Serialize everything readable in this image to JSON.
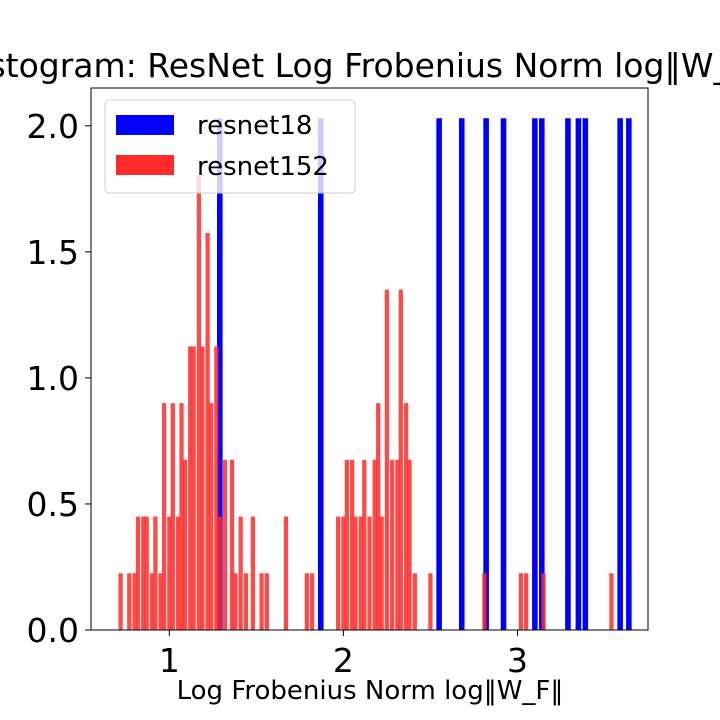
{
  "chart_data": {
    "type": "bar",
    "title": "Histogram: ResNet Log Frobenius Norm log‖W_F‖",
    "xlabel": "Log Frobenius Norm log‖W_F‖",
    "ylabel": "",
    "xlim": [
      0.55,
      3.75
    ],
    "ylim": [
      0,
      2.15
    ],
    "xticks": [
      1,
      2,
      3
    ],
    "yticks": [
      0.0,
      0.5,
      1.0,
      1.5,
      2.0
    ],
    "ytick_labels": [
      "0.0",
      "0.5",
      "1.0",
      "1.5",
      "2.0"
    ],
    "grid": false,
    "legend_position": "top-left",
    "series": [
      {
        "name": "resnet18",
        "color": "#0000ff",
        "bin_width": 0.032,
        "bins": [
          {
            "x": 1.29,
            "y": 2.03
          },
          {
            "x": 1.87,
            "y": 2.03
          },
          {
            "x": 2.55,
            "y": 2.03
          },
          {
            "x": 2.68,
            "y": 2.03
          },
          {
            "x": 2.82,
            "y": 2.03
          },
          {
            "x": 2.92,
            "y": 2.03
          },
          {
            "x": 3.1,
            "y": 2.03
          },
          {
            "x": 3.14,
            "y": 2.03
          },
          {
            "x": 3.29,
            "y": 2.03
          },
          {
            "x": 3.35,
            "y": 2.03
          },
          {
            "x": 3.39,
            "y": 2.03
          },
          {
            "x": 3.59,
            "y": 2.03
          },
          {
            "x": 3.64,
            "y": 2.03
          }
        ]
      },
      {
        "name": "resnet152",
        "color": "#ff2a2a",
        "bin_width": 0.0245,
        "bins": [
          {
            "x": 0.72,
            "y": 0.225
          },
          {
            "x": 0.77,
            "y": 0.225
          },
          {
            "x": 0.8,
            "y": 0.225
          },
          {
            "x": 0.82,
            "y": 0.45
          },
          {
            "x": 0.85,
            "y": 0.45
          },
          {
            "x": 0.87,
            "y": 0.45
          },
          {
            "x": 0.9,
            "y": 0.225
          },
          {
            "x": 0.92,
            "y": 0.45
          },
          {
            "x": 0.95,
            "y": 0.225
          },
          {
            "x": 0.97,
            "y": 0.9
          },
          {
            "x": 1.0,
            "y": 0.45
          },
          {
            "x": 1.02,
            "y": 0.9
          },
          {
            "x": 1.05,
            "y": 0.45
          },
          {
            "x": 1.07,
            "y": 0.9
          },
          {
            "x": 1.09,
            "y": 0.675
          },
          {
            "x": 1.12,
            "y": 1.125
          },
          {
            "x": 1.14,
            "y": 1.125
          },
          {
            "x": 1.17,
            "y": 1.8
          },
          {
            "x": 1.19,
            "y": 1.125
          },
          {
            "x": 1.22,
            "y": 1.575
          },
          {
            "x": 1.24,
            "y": 0.9
          },
          {
            "x": 1.27,
            "y": 1.125
          },
          {
            "x": 1.29,
            "y": 0.45
          },
          {
            "x": 1.32,
            "y": 0.675
          },
          {
            "x": 1.36,
            "y": 0.675
          },
          {
            "x": 1.38,
            "y": 0.225
          },
          {
            "x": 1.41,
            "y": 0.45
          },
          {
            "x": 1.44,
            "y": 0.225
          },
          {
            "x": 1.48,
            "y": 0.45
          },
          {
            "x": 1.53,
            "y": 0.225
          },
          {
            "x": 1.56,
            "y": 0.225
          },
          {
            "x": 1.67,
            "y": 0.45
          },
          {
            "x": 1.79,
            "y": 0.225
          },
          {
            "x": 1.82,
            "y": 0.225
          },
          {
            "x": 1.97,
            "y": 0.45
          },
          {
            "x": 2.0,
            "y": 0.45
          },
          {
            "x": 2.02,
            "y": 0.675
          },
          {
            "x": 2.05,
            "y": 0.675
          },
          {
            "x": 2.07,
            "y": 0.45
          },
          {
            "x": 2.1,
            "y": 0.45
          },
          {
            "x": 2.12,
            "y": 0.675
          },
          {
            "x": 2.15,
            "y": 0.45
          },
          {
            "x": 2.18,
            "y": 0.675
          },
          {
            "x": 2.2,
            "y": 0.9
          },
          {
            "x": 2.22,
            "y": 0.45
          },
          {
            "x": 2.25,
            "y": 1.35
          },
          {
            "x": 2.28,
            "y": 0.675
          },
          {
            "x": 2.31,
            "y": 0.675
          },
          {
            "x": 2.33,
            "y": 1.35
          },
          {
            "x": 2.36,
            "y": 0.9
          },
          {
            "x": 2.38,
            "y": 0.675
          },
          {
            "x": 2.41,
            "y": 0.225
          },
          {
            "x": 2.5,
            "y": 0.225
          },
          {
            "x": 2.81,
            "y": 0.225
          },
          {
            "x": 3.02,
            "y": 0.225
          },
          {
            "x": 3.05,
            "y": 0.225
          },
          {
            "x": 3.15,
            "y": 0.225
          },
          {
            "x": 3.54,
            "y": 0.225
          }
        ]
      }
    ],
    "legend": [
      {
        "label": "resnet18",
        "color": "#0000ff"
      },
      {
        "label": "resnet152",
        "color": "#ff2a2a"
      }
    ]
  }
}
